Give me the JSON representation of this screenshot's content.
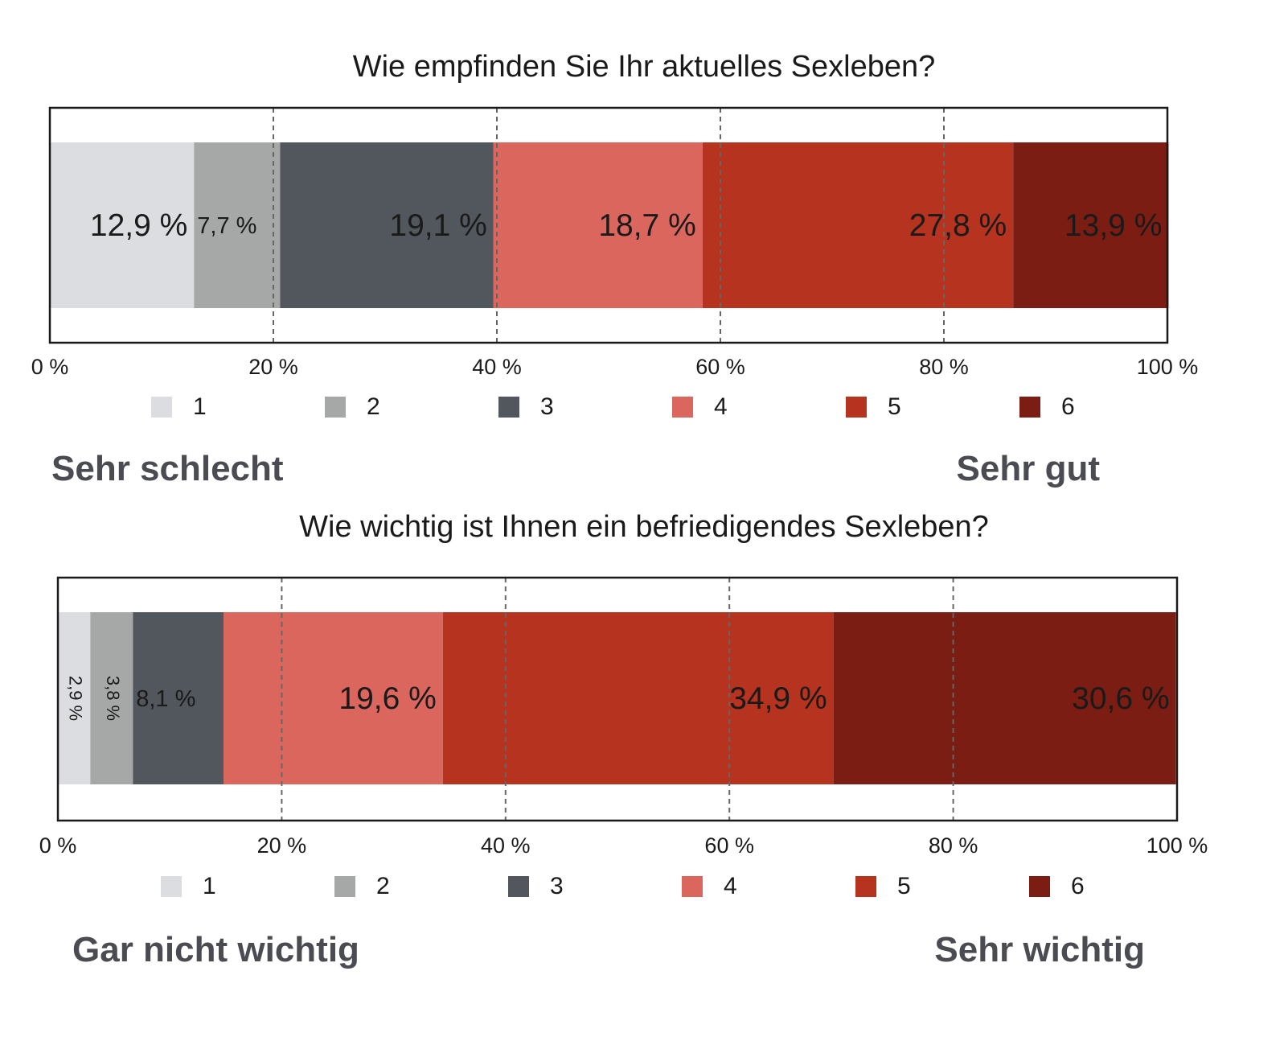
{
  "chart_data": [
    {
      "type": "bar",
      "orientation": "horizontal-stacked-100",
      "title": "Wie empfinden Sie Ihr aktuelles Sexleben?",
      "categories": [
        "1",
        "2",
        "3",
        "4",
        "5",
        "6"
      ],
      "values": [
        12.9,
        7.7,
        19.1,
        18.7,
        27.8,
        13.9
      ],
      "data_labels": [
        "12,9 %",
        "7,7 %",
        "19,1 %",
        "18,7 %",
        "27,8 %",
        "13,9 %"
      ],
      "colors": [
        "#dcdde0",
        "#a6a8a7",
        "#52565d",
        "#db665e",
        "#b5331f",
        "#7b1d12"
      ],
      "xlim": [
        0,
        100
      ],
      "x_ticks": [
        "0 %",
        "20 %",
        "40 %",
        "60 %",
        "80 %",
        "100 %"
      ],
      "grid": "vertical dashed",
      "legend": [
        "1",
        "2",
        "3",
        "4",
        "5",
        "6"
      ],
      "legend_position": "bottom",
      "scale_low_label": "Sehr schlecht",
      "scale_high_label": "Sehr gut"
    },
    {
      "type": "bar",
      "orientation": "horizontal-stacked-100",
      "title": "Wie wichtig ist Ihnen ein befriedigendes Sexleben?",
      "categories": [
        "1",
        "2",
        "3",
        "4",
        "5",
        "6"
      ],
      "values": [
        2.9,
        3.8,
        8.1,
        19.6,
        34.9,
        30.6
      ],
      "data_labels": [
        "2,9 %",
        "3,8 %",
        "8,1 %",
        "19,6 %",
        "34,9 %",
        "30,6 %"
      ],
      "colors": [
        "#dcdde0",
        "#a6a8a7",
        "#52565d",
        "#db665e",
        "#b5331f",
        "#7b1d12"
      ],
      "xlim": [
        0,
        100
      ],
      "x_ticks": [
        "0 %",
        "20 %",
        "40 %",
        "60 %",
        "80 %",
        "100 %"
      ],
      "grid": "vertical dashed",
      "legend": [
        "1",
        "2",
        "3",
        "4",
        "5",
        "6"
      ],
      "legend_position": "bottom",
      "scale_low_label": "Gar nicht wichtig",
      "scale_high_label": "Sehr wichtig"
    }
  ]
}
